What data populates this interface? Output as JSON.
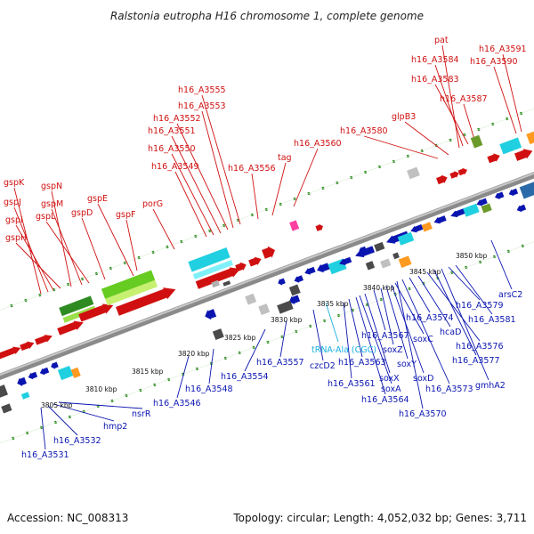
{
  "title": "Ralstonia eutropha H16 chromosome 1, complete genome",
  "footer": {
    "accession": "Accession: NC_008313",
    "topology": "Topology: circular; Length: 4,052,032 bp; Genes: 3,711"
  },
  "colors": {
    "forward_label": "#d01010",
    "reverse_label": "#0a15b0",
    "rna_label": "#1ab0e0",
    "backbone": "#8a8a8a",
    "tick": "#2e8b22"
  },
  "kbp_ticks": [
    "3805 kbp",
    "3810 kbp",
    "3815 kbp",
    "3820 kbp",
    "3825 kbp",
    "3830 kbp",
    "3835 kbp",
    "3840 kbp",
    "3845 kbp",
    "3850 kbp"
  ],
  "forward_labels": [
    "gspK",
    "gspJ",
    "gspI",
    "gspH",
    "gspN",
    "gspM",
    "gspL",
    "gspD",
    "gspE",
    "gspF",
    "porG",
    "h16_A3555",
    "h16_A3553",
    "h16_A3552",
    "h16_A3551",
    "h16_A3550",
    "h16_A3549",
    "h16_A3556",
    "tag",
    "h16_A3560",
    "h16_A3580",
    "glpB3",
    "pat",
    "h16_A3584",
    "h16_A3583",
    "h16_A3587",
    "h16_A3591",
    "h16_A3590"
  ],
  "reverse_labels": [
    "h16_A3531",
    "h16_A3532",
    "hmp2",
    "nsrR",
    "h16_A3546",
    "h16_A3548",
    "h16_A3554",
    "h16_A3557",
    "czcD2",
    "h16_A3561",
    "h16_A3563",
    "h16_A3564",
    "soxA",
    "soxX",
    "h16_A3567",
    "soxZ",
    "soxY",
    "soxD",
    "soxC",
    "h16_A3570",
    "h16_A3573",
    "h16_A3574",
    "hcaD",
    "h16_A3576",
    "h16_A3577",
    "gmhA2",
    "h16_A3579",
    "h16_A3581",
    "arsC2"
  ],
  "rna_labels": [
    "tRNA-Ala (CGC)"
  ]
}
